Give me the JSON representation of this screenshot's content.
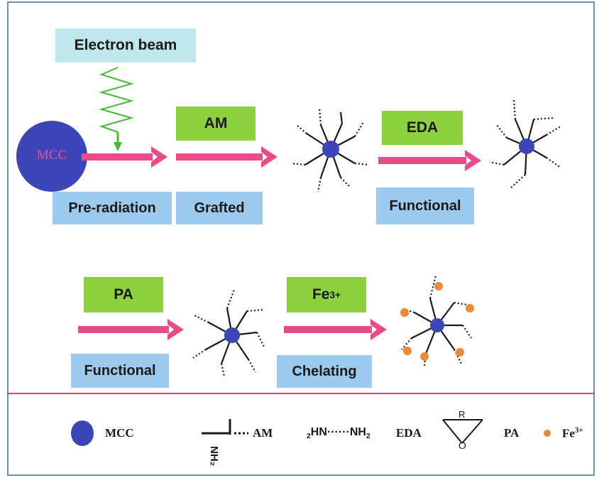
{
  "labels": {
    "electron_beam": "Electron beam",
    "mcc_core": "MCC",
    "am": "AM",
    "eda": "EDA",
    "pa": "PA",
    "fe_base": "Fe",
    "fe_charge": "3+",
    "pre_radiation": "Pre-radiation",
    "grafted": "Grafted",
    "functional_1": "Functional",
    "functional_2": "Functional",
    "chelating": "Chelating"
  },
  "legend": {
    "mcc": "MCC",
    "am": "AM",
    "eda_left_sub": "2",
    "eda_left": "HN",
    "eda_dots": "······",
    "eda_right": "NH",
    "eda_right_sub": "2",
    "eda": "EDA",
    "pa_r": "R",
    "pa_o": "O",
    "pa": "PA",
    "fe_base": "Fe",
    "fe_charge": "3+",
    "am_vertical": "NH₂"
  },
  "colors": {
    "arrow": "#ea4b86",
    "core": "#3c46b8",
    "green_box": "#8ed13f",
    "blue_box": "#9ccaee",
    "iron": "#ec8a3c",
    "divider": "#e23e7e",
    "beam": "#44bb33"
  }
}
